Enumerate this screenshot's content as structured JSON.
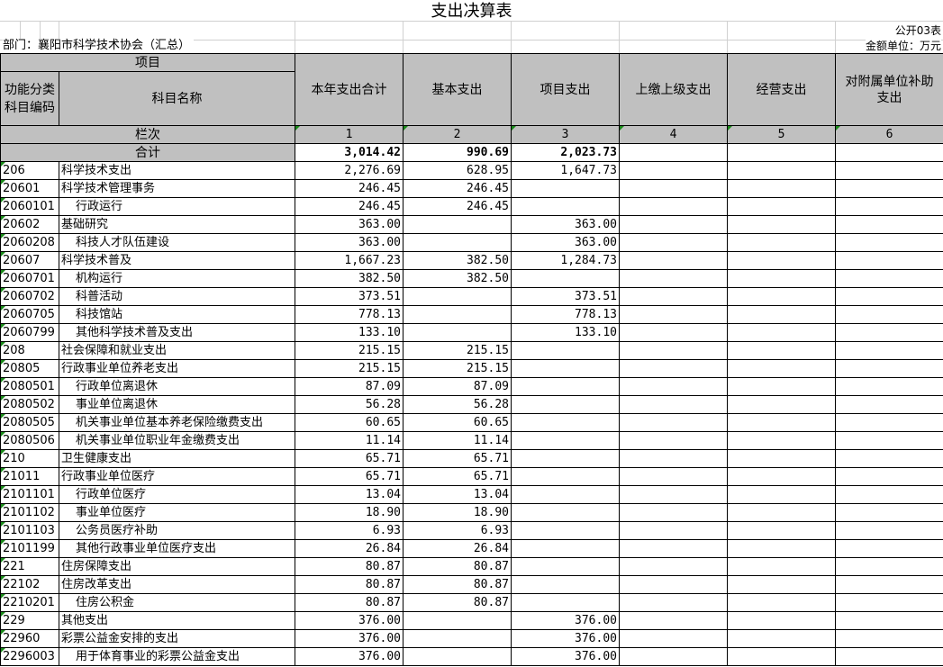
{
  "title": "支出决算表",
  "form_no": "公开03表",
  "department": "部门：襄阳市科学技术协会（汇总）",
  "unit": "金额单位：万元",
  "header": {
    "project": "项目",
    "code": "功能分类科目编码",
    "name": "科目名称",
    "columns": [
      "本年支出合计",
      "基本支出",
      "项目支出",
      "上缴上级支出",
      "经营支出",
      "对附属单位补助支出"
    ],
    "row_label": "栏次",
    "col_numbers": [
      "1",
      "2",
      "3",
      "4",
      "5",
      "6"
    ]
  },
  "total": {
    "label": "合计",
    "values": [
      "3,014.42",
      "990.69",
      "2,023.73",
      "",
      "",
      ""
    ]
  },
  "rows": [
    {
      "code": "206",
      "name": "科学技术支出",
      "values": [
        "2,276.69",
        "628.95",
        "1,647.73"
      ]
    },
    {
      "code": "20601",
      "name": "科学技术管理事务",
      "values": [
        "246.45",
        "246.45",
        ""
      ]
    },
    {
      "code": "2060101",
      "name": "行政运行",
      "values": [
        "246.45",
        "246.45",
        ""
      ]
    },
    {
      "code": "20602",
      "name": "基础研究",
      "values": [
        "363.00",
        "",
        "363.00"
      ]
    },
    {
      "code": "2060208",
      "name": "科技人才队伍建设",
      "values": [
        "363.00",
        "",
        "363.00"
      ]
    },
    {
      "code": "20607",
      "name": "科学技术普及",
      "values": [
        "1,667.23",
        "382.50",
        "1,284.73"
      ]
    },
    {
      "code": "2060701",
      "name": "机构运行",
      "values": [
        "382.50",
        "382.50",
        ""
      ]
    },
    {
      "code": "2060702",
      "name": "科普活动",
      "values": [
        "373.51",
        "",
        "373.51"
      ]
    },
    {
      "code": "2060705",
      "name": "科技馆站",
      "values": [
        "778.13",
        "",
        "778.13"
      ]
    },
    {
      "code": "2060799",
      "name": "其他科学技术普及支出",
      "values": [
        "133.10",
        "",
        "133.10"
      ]
    },
    {
      "code": "208",
      "name": "社会保障和就业支出",
      "values": [
        "215.15",
        "215.15",
        ""
      ]
    },
    {
      "code": "20805",
      "name": "行政事业单位养老支出",
      "values": [
        "215.15",
        "215.15",
        ""
      ]
    },
    {
      "code": "2080501",
      "name": "行政单位离退休",
      "values": [
        "87.09",
        "87.09",
        ""
      ]
    },
    {
      "code": "2080502",
      "name": "事业单位离退休",
      "values": [
        "56.28",
        "56.28",
        ""
      ]
    },
    {
      "code": "2080505",
      "name": "机关事业单位基本养老保险缴费支出",
      "values": [
        "60.65",
        "60.65",
        ""
      ]
    },
    {
      "code": "2080506",
      "name": "机关事业单位职业年金缴费支出",
      "values": [
        "11.14",
        "11.14",
        ""
      ]
    },
    {
      "code": "210",
      "name": "卫生健康支出",
      "values": [
        "65.71",
        "65.71",
        ""
      ]
    },
    {
      "code": "21011",
      "name": "行政事业单位医疗",
      "values": [
        "65.71",
        "65.71",
        ""
      ]
    },
    {
      "code": "2101101",
      "name": "行政单位医疗",
      "values": [
        "13.04",
        "13.04",
        ""
      ]
    },
    {
      "code": "2101102",
      "name": "事业单位医疗",
      "values": [
        "18.90",
        "18.90",
        ""
      ]
    },
    {
      "code": "2101103",
      "name": "公务员医疗补助",
      "values": [
        "6.93",
        "6.93",
        ""
      ]
    },
    {
      "code": "2101199",
      "name": "其他行政事业单位医疗支出",
      "values": [
        "26.84",
        "26.84",
        ""
      ]
    },
    {
      "code": "221",
      "name": "住房保障支出",
      "values": [
        "80.87",
        "80.87",
        ""
      ]
    },
    {
      "code": "22102",
      "name": "住房改革支出",
      "values": [
        "80.87",
        "80.87",
        ""
      ]
    },
    {
      "code": "2210201",
      "name": "住房公积金",
      "values": [
        "80.87",
        "80.87",
        ""
      ]
    },
    {
      "code": "229",
      "name": "其他支出",
      "values": [
        "376.00",
        "",
        "376.00"
      ]
    },
    {
      "code": "22960",
      "name": "彩票公益金安排的支出",
      "values": [
        "376.00",
        "",
        "376.00"
      ]
    },
    {
      "code": "2296003",
      "name": "用于体育事业的彩票公益金支出",
      "values": [
        "376.00",
        "",
        "376.00"
      ]
    }
  ]
}
